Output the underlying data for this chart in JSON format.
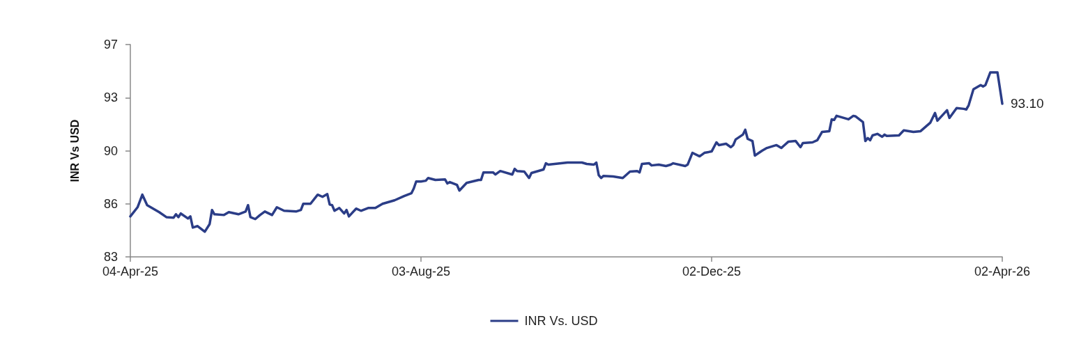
{
  "chart_data": {
    "type": "line",
    "ylabel": "INR Vs USD",
    "x": [
      "2025-04-04",
      "2025-04-07",
      "2025-04-09",
      "2025-04-11",
      "2025-04-16",
      "2025-04-19",
      "2025-04-22",
      "2025-04-23",
      "2025-04-24",
      "2025-04-25",
      "2025-04-28",
      "2025-04-29",
      "2025-04-30",
      "2025-05-02",
      "2025-05-05",
      "2025-05-07",
      "2025-05-08",
      "2025-05-09",
      "2025-05-13",
      "2025-05-15",
      "2025-05-19",
      "2025-05-22",
      "2025-05-23",
      "2025-05-24",
      "2025-05-26",
      "2025-05-28",
      "2025-05-30",
      "2025-06-02",
      "2025-06-04",
      "2025-06-07",
      "2025-06-12",
      "2025-06-14",
      "2025-06-15",
      "2025-06-18",
      "2025-06-21",
      "2025-06-23",
      "2025-06-25",
      "2025-06-26",
      "2025-06-27",
      "2025-06-28",
      "2025-06-30",
      "2025-07-02",
      "2025-07-03",
      "2025-07-04",
      "2025-07-07",
      "2025-07-09",
      "2025-07-12",
      "2025-07-15",
      "2025-07-18",
      "2025-07-23",
      "2025-07-27",
      "2025-07-30",
      "2025-07-31",
      "2025-08-01",
      "2025-08-03",
      "2025-08-05",
      "2025-08-06",
      "2025-08-09",
      "2025-08-13",
      "2025-08-14",
      "2025-08-15",
      "2025-08-18",
      "2025-08-19",
      "2025-08-22",
      "2025-08-27",
      "2025-08-28",
      "2025-08-29",
      "2025-09-02",
      "2025-09-03",
      "2025-09-05",
      "2025-09-10",
      "2025-09-11",
      "2025-09-12",
      "2025-09-15",
      "2025-09-17",
      "2025-09-18",
      "2025-09-23",
      "2025-09-24",
      "2025-09-25",
      "2025-10-03",
      "2025-10-09",
      "2025-10-11",
      "2025-10-14",
      "2025-10-15",
      "2025-10-16",
      "2025-10-17",
      "2025-10-18",
      "2025-10-22",
      "2025-10-26",
      "2025-10-29",
      "2025-11-01",
      "2025-11-02",
      "2025-11-03",
      "2025-11-06",
      "2025-11-07",
      "2025-11-10",
      "2025-11-13",
      "2025-11-15",
      "2025-11-16",
      "2025-11-21",
      "2025-11-22",
      "2025-11-24",
      "2025-11-27",
      "2025-11-29",
      "2025-12-02",
      "2025-12-04",
      "2025-12-05",
      "2025-12-08",
      "2025-12-10",
      "2025-12-11",
      "2025-12-12",
      "2025-12-15",
      "2025-12-16",
      "2025-12-17",
      "2025-12-19",
      "2025-12-20",
      "2025-12-23",
      "2025-12-25",
      "2025-12-29",
      "2025-12-31",
      "2026-01-01",
      "2026-01-03",
      "2026-01-06",
      "2026-01-08",
      "2026-01-09",
      "2026-01-13",
      "2026-01-15",
      "2026-01-17",
      "2026-01-20",
      "2026-01-21",
      "2026-01-22",
      "2026-01-23",
      "2026-01-28",
      "2026-01-30",
      "2026-01-31",
      "2026-02-03",
      "2026-02-04",
      "2026-02-05",
      "2026-02-06",
      "2026-02-07",
      "2026-02-09",
      "2026-02-11",
      "2026-02-12",
      "2026-02-13",
      "2026-02-18",
      "2026-02-20",
      "2026-02-24",
      "2026-02-27",
      "2026-03-03",
      "2026-03-05",
      "2026-03-06",
      "2026-03-10",
      "2026-03-11",
      "2026-03-14",
      "2026-03-17",
      "2026-03-18",
      "2026-03-19",
      "2026-03-21",
      "2026-03-24",
      "2026-03-25",
      "2026-03-26",
      "2026-03-28",
      "2026-03-31",
      "2026-04-02"
    ],
    "series": [
      {
        "name": "INR Vs. USD",
        "color": "#2b3d87",
        "values": [
          85.67,
          86.27,
          87.1,
          86.41,
          85.95,
          85.62,
          85.58,
          85.81,
          85.62,
          85.86,
          85.53,
          85.67,
          84.93,
          85.03,
          84.66,
          85.16,
          86.09,
          85.81,
          85.76,
          85.95,
          85.81,
          85.99,
          86.41,
          85.62,
          85.49,
          85.76,
          85.99,
          85.76,
          86.27,
          86.04,
          85.99,
          86.09,
          86.5,
          86.5,
          87.1,
          86.96,
          87.14,
          86.45,
          86.41,
          86.04,
          86.22,
          85.86,
          86.09,
          85.67,
          86.18,
          86.04,
          86.22,
          86.22,
          86.5,
          86.73,
          87.01,
          87.19,
          87.51,
          87.97,
          87.97,
          88.02,
          88.2,
          88.07,
          88.11,
          87.84,
          87.93,
          87.74,
          87.37,
          87.88,
          88.07,
          88.07,
          88.57,
          88.57,
          88.43,
          88.66,
          88.43,
          88.8,
          88.66,
          88.62,
          88.2,
          88.53,
          88.76,
          89.17,
          89.08,
          89.22,
          89.22,
          89.13,
          89.08,
          89.22,
          88.39,
          88.2,
          88.34,
          88.3,
          88.2,
          88.62,
          88.66,
          88.57,
          89.13,
          89.17,
          89.03,
          89.08,
          88.99,
          89.08,
          89.17,
          88.99,
          89.08,
          89.86,
          89.63,
          89.86,
          89.95,
          90.55,
          90.37,
          90.46,
          90.23,
          90.37,
          90.74,
          91.06,
          91.38,
          90.78,
          90.64,
          89.68,
          90.0,
          90.18,
          90.37,
          90.18,
          90.32,
          90.6,
          90.64,
          90.23,
          90.51,
          90.55,
          90.69,
          91.24,
          91.29,
          92.07,
          92.03,
          92.3,
          92.07,
          92.3,
          92.26,
          91.89,
          90.64,
          90.83,
          90.69,
          91.01,
          91.11,
          90.92,
          91.06,
          90.97,
          91.01,
          91.34,
          91.24,
          91.29,
          91.84,
          92.49,
          91.98,
          92.67,
          92.16,
          92.81,
          92.76,
          92.72,
          92.99,
          94.05,
          94.33,
          94.24,
          94.33,
          95.16,
          95.16,
          93.1
        ]
      }
    ],
    "xlim": [
      "2025-04-04",
      "2026-04-02"
    ],
    "xticks": [
      {
        "value": "2025-04-04",
        "label": "04-Apr-25"
      },
      {
        "value": "2025-08-03",
        "label": "03-Aug-25"
      },
      {
        "value": "2025-12-02",
        "label": "02-Dec-25"
      },
      {
        "value": "2026-04-02",
        "label": "02-Apr-26"
      }
    ],
    "ylim": [
      83,
      97
    ],
    "yticks": [
      83,
      {
        "value": 86.5,
        "label": "86"
      },
      90,
      {
        "value": 93.5,
        "label": "93"
      },
      97
    ],
    "annotations": [
      {
        "text": "93.10",
        "x": "2026-04-02",
        "y": 93.1
      }
    ],
    "grid": false,
    "legend": "bottom",
    "marker": "none",
    "line_style": "solid"
  }
}
